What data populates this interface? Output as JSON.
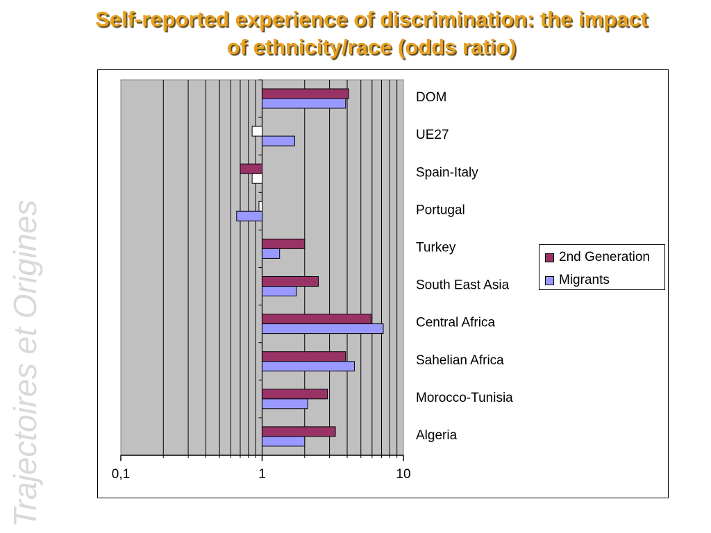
{
  "slide": {
    "title_line1": "Self-reported experience of discrimination: the impact",
    "title_line2": "of ethnicity/race (odds ratio)",
    "watermark_text": "Trajectoires et Origines"
  },
  "colors": {
    "title": "#E8A020",
    "plot_background": "#C0C0C0",
    "second_generation": "#993366",
    "migrants": "#9999FF",
    "not_significant": "#FFFFFF"
  },
  "chart_data": {
    "type": "bar",
    "orientation": "horizontal",
    "x_scale": "log",
    "xlim": [
      0.1,
      10
    ],
    "x_ticks": [
      "0,1",
      "1",
      "10"
    ],
    "grid": "vertical",
    "legend_position": "right",
    "categories": [
      "DOM",
      "UE27",
      "Spain-Italy",
      "Portugal",
      "Turkey",
      "South East Asia",
      "Central Africa",
      "Sahelian Africa",
      "Morocco-Tunisia",
      "Algeria"
    ],
    "series": [
      {
        "name": "2nd Generation",
        "color": "#993366",
        "values": [
          4.1,
          0.85,
          0.7,
          0.95,
          2.0,
          2.5,
          5.9,
          3.9,
          2.9,
          3.3
        ],
        "significant": [
          true,
          false,
          true,
          false,
          true,
          true,
          true,
          true,
          true,
          true
        ]
      },
      {
        "name": "Migrants",
        "color": "#9999FF",
        "values": [
          3.9,
          1.7,
          0.85,
          0.66,
          1.33,
          1.75,
          7.2,
          4.5,
          2.1,
          2.0
        ],
        "significant": [
          true,
          true,
          false,
          true,
          true,
          true,
          true,
          true,
          true,
          true
        ]
      }
    ]
  }
}
